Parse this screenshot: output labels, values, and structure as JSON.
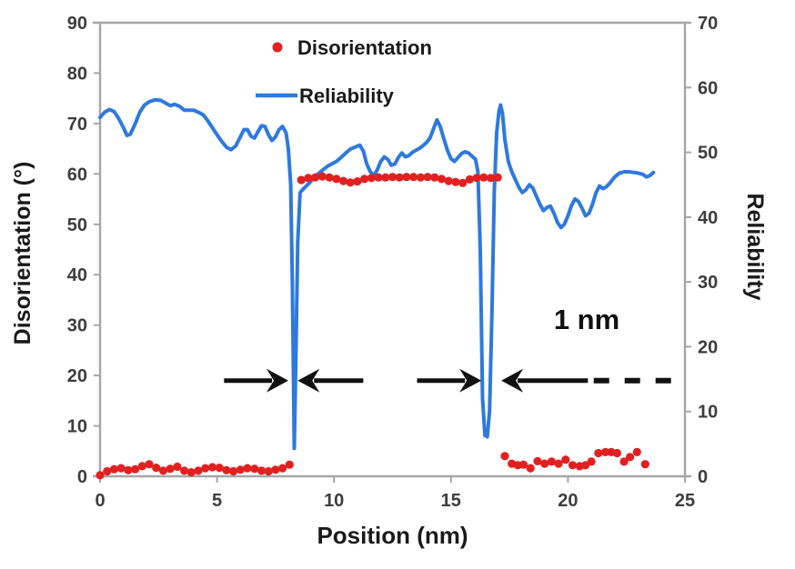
{
  "chart_data": {
    "type": "line+scatter",
    "xlabel": "Position (nm)",
    "ylabel_left": "Disorientation (°)",
    "ylabel_right": "Reliability",
    "xlim": [
      0,
      25
    ],
    "ylim_left": [
      0,
      90
    ],
    "ylim_right": [
      0,
      70
    ],
    "x_ticks": [
      0,
      5,
      10,
      15,
      20,
      25
    ],
    "y_ticks_left": [
      0,
      10,
      20,
      30,
      40,
      50,
      60,
      70,
      80,
      90
    ],
    "y_ticks_right": [
      0,
      10,
      20,
      30,
      40,
      50,
      60,
      70
    ],
    "grid": false,
    "legend_position": "top-center-inside",
    "legend": [
      {
        "label": "Disorientation",
        "marker": "dot",
        "color": "#e32020"
      },
      {
        "label": "Reliability",
        "marker": "line",
        "color": "#2e79de"
      }
    ],
    "series": [
      {
        "name": "Disorientation",
        "axis": "left",
        "type": "scatter",
        "color": "#e32020",
        "points": [
          [
            0,
            0.2
          ],
          [
            0.3,
            1.0
          ],
          [
            0.6,
            1.4
          ],
          [
            0.9,
            1.6
          ],
          [
            1.2,
            1.2
          ],
          [
            1.5,
            1.4
          ],
          [
            1.8,
            2.0
          ],
          [
            2.1,
            2.4
          ],
          [
            2.4,
            1.7
          ],
          [
            2.7,
            1.1
          ],
          [
            3.0,
            1.5
          ],
          [
            3.3,
            1.9
          ],
          [
            3.6,
            1.1
          ],
          [
            3.9,
            0.8
          ],
          [
            4.2,
            1.1
          ],
          [
            4.5,
            1.6
          ],
          [
            4.8,
            1.8
          ],
          [
            5.1,
            1.7
          ],
          [
            5.4,
            1.2
          ],
          [
            5.7,
            1.0
          ],
          [
            6.0,
            1.3
          ],
          [
            6.3,
            1.6
          ],
          [
            6.6,
            1.5
          ],
          [
            6.9,
            1.1
          ],
          [
            7.2,
            1.0
          ],
          [
            7.5,
            1.3
          ],
          [
            7.8,
            1.6
          ],
          [
            8.1,
            2.3
          ],
          [
            8.6,
            58.8
          ],
          [
            8.9,
            59.2
          ],
          [
            9.2,
            59.3
          ],
          [
            9.5,
            59.5
          ],
          [
            9.8,
            59.3
          ],
          [
            10.1,
            59.0
          ],
          [
            10.4,
            58.6
          ],
          [
            10.7,
            58.3
          ],
          [
            11.0,
            58.5
          ],
          [
            11.3,
            59.0
          ],
          [
            11.6,
            59.2
          ],
          [
            11.9,
            59.3
          ],
          [
            12.2,
            59.3
          ],
          [
            12.5,
            59.4
          ],
          [
            12.8,
            59.3
          ],
          [
            13.1,
            59.4
          ],
          [
            13.4,
            59.4
          ],
          [
            13.7,
            59.3
          ],
          [
            14.0,
            59.4
          ],
          [
            14.3,
            59.3
          ],
          [
            14.6,
            59.0
          ],
          [
            14.9,
            58.6
          ],
          [
            15.2,
            58.4
          ],
          [
            15.5,
            58.2
          ],
          [
            15.8,
            58.9
          ],
          [
            16.1,
            59.2
          ],
          [
            16.4,
            59.3
          ],
          [
            16.7,
            59.2
          ],
          [
            17.0,
            59.3
          ],
          [
            17.3,
            4.0
          ],
          [
            17.6,
            2.5
          ],
          [
            17.85,
            2.2
          ],
          [
            18.1,
            2.3
          ],
          [
            18.4,
            1.6
          ],
          [
            18.7,
            3.0
          ],
          [
            19.0,
            2.5
          ],
          [
            19.3,
            2.9
          ],
          [
            19.6,
            2.5
          ],
          [
            19.9,
            3.3
          ],
          [
            20.2,
            2.2
          ],
          [
            20.5,
            2.0
          ],
          [
            20.75,
            2.2
          ],
          [
            21.0,
            2.9
          ],
          [
            21.3,
            4.6
          ],
          [
            21.6,
            4.8
          ],
          [
            21.85,
            4.8
          ],
          [
            22.1,
            4.6
          ],
          [
            22.4,
            2.9
          ],
          [
            22.65,
            3.8
          ],
          [
            22.95,
            4.8
          ],
          [
            23.3,
            2.4
          ]
        ]
      },
      {
        "name": "Reliability",
        "axis": "right",
        "type": "line",
        "color": "#2e79de",
        "points": [
          [
            0,
            55.4
          ],
          [
            0.2,
            56.2
          ],
          [
            0.4,
            56.6
          ],
          [
            0.6,
            56.3
          ],
          [
            0.8,
            55.2
          ],
          [
            1.0,
            53.8
          ],
          [
            1.15,
            52.6
          ],
          [
            1.3,
            52.8
          ],
          [
            1.5,
            54.4
          ],
          [
            1.7,
            56.2
          ],
          [
            1.9,
            57.3
          ],
          [
            2.1,
            57.8
          ],
          [
            2.35,
            58.1
          ],
          [
            2.6,
            58.0
          ],
          [
            2.8,
            57.6
          ],
          [
            3.0,
            57.2
          ],
          [
            3.2,
            57.4
          ],
          [
            3.4,
            57.1
          ],
          [
            3.6,
            56.5
          ],
          [
            3.8,
            56.5
          ],
          [
            4.0,
            56.5
          ],
          [
            4.2,
            56.2
          ],
          [
            4.4,
            55.8
          ],
          [
            4.6,
            54.9
          ],
          [
            4.8,
            53.8
          ],
          [
            5.0,
            52.7
          ],
          [
            5.2,
            51.7
          ],
          [
            5.4,
            50.8
          ],
          [
            5.6,
            50.4
          ],
          [
            5.8,
            51.0
          ],
          [
            6.0,
            52.4
          ],
          [
            6.15,
            53.5
          ],
          [
            6.3,
            53.5
          ],
          [
            6.45,
            52.5
          ],
          [
            6.6,
            52.2
          ],
          [
            6.75,
            53.2
          ],
          [
            6.9,
            54.1
          ],
          [
            7.05,
            54.0
          ],
          [
            7.2,
            52.7
          ],
          [
            7.35,
            51.8
          ],
          [
            7.5,
            52.4
          ],
          [
            7.65,
            53.5
          ],
          [
            7.8,
            54.0
          ],
          [
            7.95,
            53.0
          ],
          [
            8.05,
            50.5
          ],
          [
            8.15,
            45.0
          ],
          [
            8.22,
            30.0
          ],
          [
            8.3,
            4.3
          ],
          [
            8.38,
            20.0
          ],
          [
            8.45,
            36.0
          ],
          [
            8.55,
            43.8
          ],
          [
            8.7,
            44.4
          ],
          [
            8.9,
            45.1
          ],
          [
            9.1,
            45.9
          ],
          [
            9.3,
            46.6
          ],
          [
            9.5,
            47.2
          ],
          [
            9.7,
            47.8
          ],
          [
            9.9,
            48.2
          ],
          [
            10.1,
            48.6
          ],
          [
            10.3,
            49.2
          ],
          [
            10.5,
            49.9
          ],
          [
            10.7,
            50.5
          ],
          [
            10.9,
            50.8
          ],
          [
            11.1,
            51.1
          ],
          [
            11.25,
            50.2
          ],
          [
            11.4,
            48.2
          ],
          [
            11.55,
            47.0
          ],
          [
            11.7,
            46.4
          ],
          [
            11.85,
            47.3
          ],
          [
            12.0,
            48.6
          ],
          [
            12.15,
            49.3
          ],
          [
            12.3,
            48.9
          ],
          [
            12.45,
            48.0
          ],
          [
            12.6,
            48.2
          ],
          [
            12.75,
            49.2
          ],
          [
            12.9,
            49.9
          ],
          [
            13.05,
            49.3
          ],
          [
            13.2,
            49.5
          ],
          [
            13.35,
            50.0
          ],
          [
            13.5,
            50.3
          ],
          [
            13.65,
            50.6
          ],
          [
            13.8,
            51.0
          ],
          [
            13.95,
            51.5
          ],
          [
            14.1,
            52.2
          ],
          [
            14.25,
            53.6
          ],
          [
            14.4,
            55.0
          ],
          [
            14.55,
            53.9
          ],
          [
            14.7,
            52.0
          ],
          [
            14.85,
            50.3
          ],
          [
            15.0,
            49.0
          ],
          [
            15.15,
            48.6
          ],
          [
            15.3,
            49.2
          ],
          [
            15.45,
            49.8
          ],
          [
            15.6,
            50.1
          ],
          [
            15.75,
            49.9
          ],
          [
            15.9,
            49.4
          ],
          [
            16.05,
            48.9
          ],
          [
            16.15,
            47.0
          ],
          [
            16.25,
            35.0
          ],
          [
            16.35,
            12.0
          ],
          [
            16.45,
            6.3
          ],
          [
            16.55,
            6.1
          ],
          [
            16.65,
            10.0
          ],
          [
            16.75,
            25.0
          ],
          [
            16.85,
            44.0
          ],
          [
            16.95,
            53.0
          ],
          [
            17.05,
            56.3
          ],
          [
            17.12,
            57.3
          ],
          [
            17.2,
            56.0
          ],
          [
            17.3,
            52.0
          ],
          [
            17.45,
            48.6
          ],
          [
            17.6,
            47.0
          ],
          [
            17.75,
            45.8
          ],
          [
            17.9,
            44.6
          ],
          [
            18.05,
            43.8
          ],
          [
            18.2,
            44.2
          ],
          [
            18.35,
            45.0
          ],
          [
            18.5,
            44.5
          ],
          [
            18.65,
            43.2
          ],
          [
            18.8,
            42.0
          ],
          [
            18.95,
            41.0
          ],
          [
            19.1,
            41.5
          ],
          [
            19.25,
            41.7
          ],
          [
            19.4,
            40.6
          ],
          [
            19.55,
            39.2
          ],
          [
            19.7,
            38.4
          ],
          [
            19.85,
            38.9
          ],
          [
            20.0,
            40.2
          ],
          [
            20.15,
            41.8
          ],
          [
            20.3,
            42.8
          ],
          [
            20.45,
            42.4
          ],
          [
            20.6,
            41.4
          ],
          [
            20.75,
            40.2
          ],
          [
            20.9,
            40.6
          ],
          [
            21.05,
            42.0
          ],
          [
            21.2,
            43.8
          ],
          [
            21.35,
            44.8
          ],
          [
            21.5,
            44.4
          ],
          [
            21.65,
            44.7
          ],
          [
            21.8,
            45.3
          ],
          [
            22.0,
            46.2
          ],
          [
            22.2,
            46.8
          ],
          [
            22.4,
            47.0
          ],
          [
            22.6,
            47.0
          ],
          [
            22.8,
            46.9
          ],
          [
            23.0,
            46.8
          ],
          [
            23.2,
            46.6
          ],
          [
            23.35,
            46.2
          ],
          [
            23.5,
            46.4
          ],
          [
            23.65,
            46.9
          ]
        ]
      }
    ],
    "annotations": {
      "label_1nm": {
        "text": "1 nm",
        "x": 20.8,
        "y_left_axis": 31
      },
      "arrows_y_left_axis": 19,
      "arrows": [
        {
          "dir": "right",
          "x_start": 5.3,
          "x_tip": 8.05
        },
        {
          "dir": "left",
          "x_tip": 8.45,
          "x_start": 11.25
        },
        {
          "dir": "right",
          "x_start": 13.55,
          "x_tip": 16.3
        },
        {
          "dir": "left",
          "x_tip": 17.15,
          "x_start": 20.85
        }
      ],
      "dashed_line": {
        "x_start": 21.1,
        "x_end": 24.7
      }
    },
    "colors": {
      "line_blue": "#2e79de",
      "dot_red": "#e32020",
      "axis_gray": "#a6a6a6",
      "tick_label": "#3d3d3d",
      "title_black": "#1a1a1a",
      "annotation_black": "#111111",
      "background": "#ffffff"
    }
  }
}
